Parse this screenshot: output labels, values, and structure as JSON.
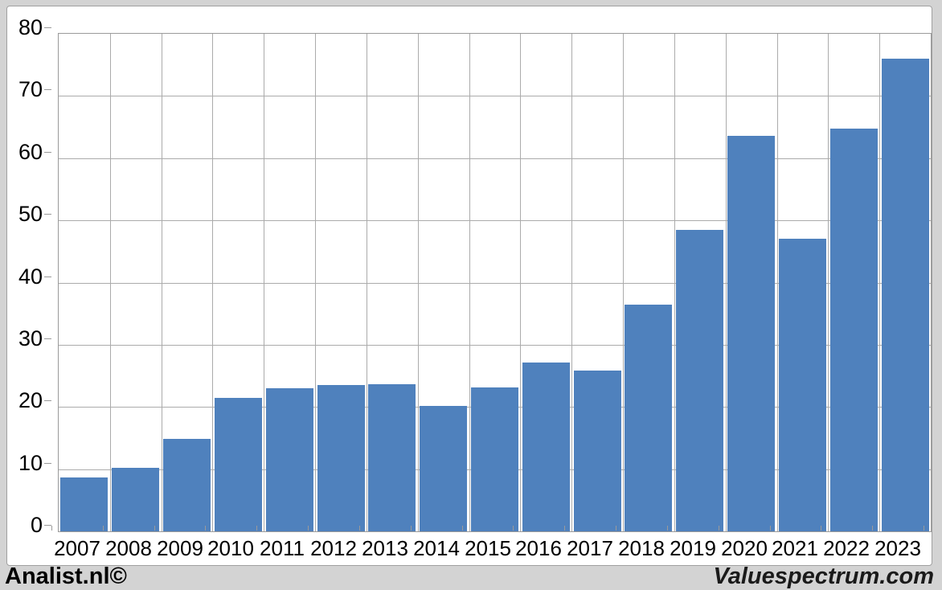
{
  "chart_data": {
    "type": "bar",
    "title": "",
    "xlabel": "",
    "ylabel": "",
    "categories": [
      "2007",
      "2008",
      "2009",
      "2010",
      "2011",
      "2012",
      "2013",
      "2014",
      "2015",
      "2016",
      "2017",
      "2018",
      "2019",
      "2020",
      "2021",
      "2022",
      "2023"
    ],
    "values": [
      8.7,
      10.2,
      14.8,
      21.4,
      23.0,
      23.5,
      23.6,
      20.2,
      23.1,
      27.1,
      25.9,
      36.4,
      48.5,
      63.6,
      47.0,
      64.8,
      76.0
    ],
    "ylim": [
      0,
      80
    ],
    "yticks": [
      0,
      10,
      20,
      30,
      40,
      50,
      60,
      70,
      80
    ],
    "grid": true,
    "legend_position": "none",
    "bar_color": "#4f81bd"
  },
  "footer": {
    "left_text": "Analist.nl©",
    "right_text": "Valuespectrum.com"
  },
  "colors": {
    "page_background": "#d3d3d3",
    "panel_background": "#ffffff",
    "panel_border": "#a0a0a0",
    "gridline": "#ababab",
    "axis": "#9a9a9a",
    "bar": "#4f81bd",
    "text": "#000000"
  }
}
